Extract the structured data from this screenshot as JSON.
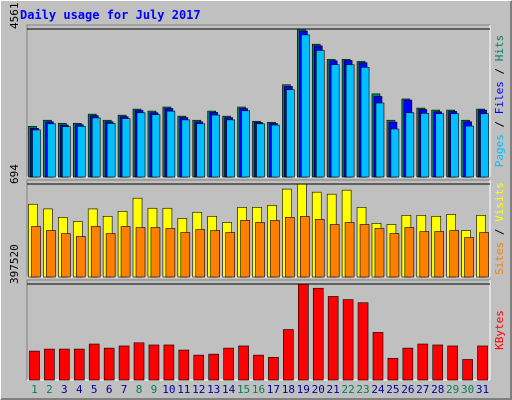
{
  "chart_data": [
    {
      "type": "bar",
      "title": "Daily usage for July 2017",
      "title_color": "#0000ff",
      "y_label_separator": " / ",
      "ylim": [
        0,
        4561
      ],
      "yticks": [
        4561
      ],
      "series": [
        {
          "name": "Hits",
          "color": "#00805c",
          "values": [
            1562,
            1750,
            1656,
            1656,
            1937,
            1750,
            1906,
            2093,
            2031,
            2156,
            1875,
            1750,
            2031,
            1875,
            2156,
            1718,
            1687,
            2843,
            4561,
            4092,
            3624,
            3624,
            3561,
            2562,
            1750,
            2405,
            2124,
            2062,
            2062,
            1750,
            2093
          ]
        },
        {
          "name": "Files",
          "color": "#0000ff",
          "values": [
            1500,
            1700,
            1600,
            1610,
            1890,
            1700,
            1860,
            2050,
            1980,
            2110,
            1830,
            1700,
            1990,
            1830,
            2110,
            1680,
            1650,
            2790,
            4500,
            4040,
            3580,
            3590,
            3520,
            2480,
            1690,
            2370,
            2080,
            2010,
            2020,
            1700,
            2060
          ]
        },
        {
          "name": "Pages",
          "color": "#00c0ff",
          "values": [
            1450,
            1640,
            1550,
            1560,
            1820,
            1650,
            1800,
            1980,
            1920,
            2030,
            1760,
            1640,
            1910,
            1760,
            2040,
            1640,
            1600,
            2690,
            4380,
            3900,
            3460,
            3460,
            3380,
            2280,
            1480,
            1980,
            1960,
            1950,
            1950,
            1570,
            1950
          ]
        }
      ]
    },
    {
      "type": "bar",
      "y_label_separator": " / ",
      "ylim": [
        0,
        694
      ],
      "yticks": [
        694
      ],
      "series": [
        {
          "name": "Visits",
          "color": "#ffff00",
          "values": [
            543,
            508,
            445,
            415,
            508,
            453,
            490,
            588,
            513,
            513,
            437,
            483,
            453,
            407,
            520,
            520,
            535,
            656,
            694,
            633,
            618,
            648,
            520,
            400,
            392,
            460,
            460,
            453,
            467,
            347,
            460
          ]
        },
        {
          "name": "Sites",
          "color": "#ff8000",
          "values": [
            377,
            347,
            324,
            302,
            377,
            324,
            377,
            369,
            369,
            362,
            332,
            354,
            347,
            332,
            422,
            407,
            422,
            445,
            452,
            430,
            392,
            407,
            392,
            362,
            324,
            369,
            339,
            339,
            347,
            294,
            332
          ]
        }
      ]
    },
    {
      "type": "bar",
      "ylim": [
        0,
        397520
      ],
      "yticks": [
        397520
      ],
      "categories": [
        "1",
        "2",
        "3",
        "4",
        "5",
        "6",
        "7",
        "8",
        "9",
        "10",
        "11",
        "12",
        "13",
        "14",
        "15",
        "16",
        "17",
        "18",
        "19",
        "20",
        "21",
        "22",
        "23",
        "24",
        "25",
        "26",
        "27",
        "28",
        "29",
        "30",
        "31"
      ],
      "category_colors": [
        "#00805c",
        "#00805c",
        "#0000a0",
        "#0000a0",
        "#0000a0",
        "#0000a0",
        "#0000a0",
        "#00805c",
        "#00805c",
        "#0000a0",
        "#0000a0",
        "#0000a0",
        "#0000a0",
        "#0000a0",
        "#00805c",
        "#00805c",
        "#0000a0",
        "#0000a0",
        "#0000a0",
        "#0000a0",
        "#0000a0",
        "#00805c",
        "#00805c",
        "#0000a0",
        "#0000a0",
        "#0000a0",
        "#0000a0",
        "#0000a0",
        "#00805c",
        "#00805c",
        "#0000a0"
      ],
      "series": [
        {
          "name": "KBytes",
          "color": "#ff0000",
          "values": [
            119680,
            128000,
            128000,
            128000,
            149000,
            132000,
            141000,
            154000,
            145000,
            145000,
            124000,
            103000,
            107000,
            132000,
            141000,
            103000,
            94000,
            209000,
            397520,
            380000,
            346000,
            333000,
            320000,
            197000,
            90000,
            132000,
            149000,
            145000,
            141000,
            85000,
            141000
          ]
        }
      ]
    }
  ]
}
